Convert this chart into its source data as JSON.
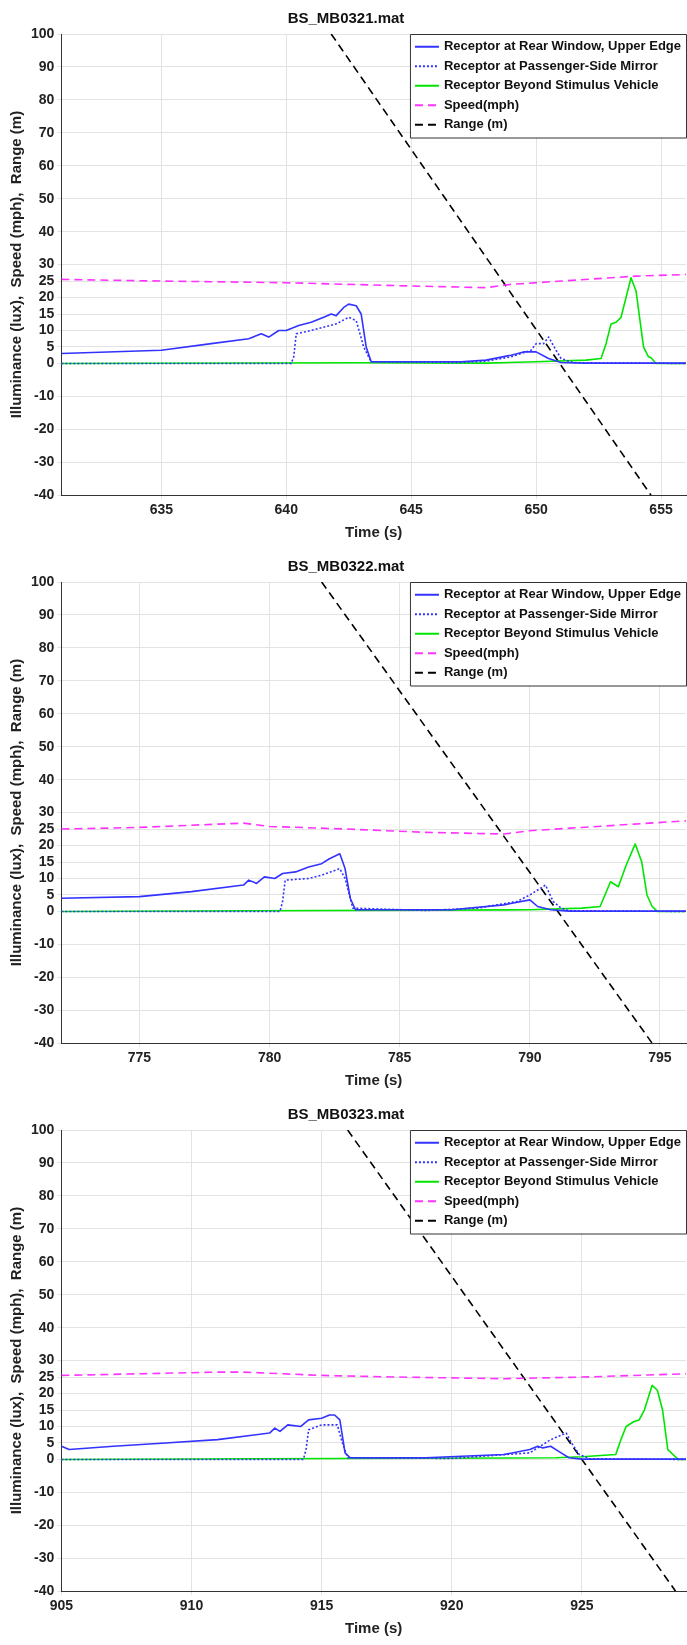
{
  "chart_data": [
    {
      "type": "line",
      "title": "BS_MB0321.mat",
      "xlabel": "Time (s)",
      "ylabel": "Illuminance (lux),  Speed (mph),  Range (m)",
      "xlim": [
        631,
        656
      ],
      "xticks": [
        635,
        640,
        645,
        650,
        655
      ],
      "ylim": [
        -40,
        100
      ],
      "yticks": [
        -40,
        -30,
        -20,
        -10,
        0,
        5,
        10,
        15,
        20,
        25,
        30,
        40,
        50,
        60,
        70,
        80,
        90,
        100
      ],
      "grid": true,
      "legend": "top right",
      "marker": "none",
      "series": [
        {
          "name": "Receptor at Rear Window, Upper Edge",
          "color": "#3333ff",
          "line_style": "solid",
          "x": [
            631,
            635,
            637,
            638.5,
            639,
            639.3,
            639.7,
            640,
            640.5,
            641,
            641.5,
            641.8,
            642,
            642.3,
            642.5,
            642.8,
            643,
            643.2,
            643.4,
            645,
            647,
            648,
            649,
            649.5,
            650,
            650.5,
            651,
            652,
            656
          ],
          "values": [
            3,
            4,
            6,
            7.5,
            9,
            8,
            10,
            10,
            11.5,
            12.5,
            14,
            15,
            14.5,
            17,
            18,
            17.5,
            15,
            5,
            0.5,
            0.5,
            0.5,
            1,
            2.5,
            3.5,
            3.5,
            1.5,
            0.3,
            0.1,
            0.1
          ]
        },
        {
          "name": "Receptor at Passenger-Side Mirror",
          "color": "#3333ff",
          "line_style": "dotted",
          "x": [
            631,
            640.2,
            640.3,
            640.4,
            641,
            642,
            642.5,
            642.8,
            643.1,
            643.4,
            647,
            648,
            649,
            649.8,
            650,
            650.3,
            650.5,
            650.8,
            651,
            651.5,
            656
          ],
          "values": [
            0,
            0,
            2,
            9,
            10,
            12,
            14,
            13,
            5,
            0.5,
            0.3,
            0.7,
            2,
            4,
            6,
            6,
            8,
            4,
            1.5,
            0.2,
            0
          ]
        },
        {
          "name": "Receptor Beyond Stimulus Vehicle",
          "color": "#00e600",
          "line_style": "solid",
          "x": [
            631,
            643,
            648,
            650,
            652,
            652.6,
            652.8,
            653,
            653.2,
            653.4,
            653.6,
            653.8,
            654,
            654.3,
            654.5,
            654.6,
            654.8,
            656
          ],
          "values": [
            0,
            0.2,
            0.1,
            0.5,
            1,
            1.5,
            6,
            12,
            12.5,
            14,
            20,
            26,
            22,
            5,
            2,
            1.7,
            0,
            0
          ]
        },
        {
          "name": "Speed(mph)",
          "color": "#ff33ff",
          "line_style": "dashed",
          "x": [
            631,
            635,
            640,
            645,
            648,
            649,
            651,
            653,
            654,
            656
          ],
          "values": [
            25.5,
            25,
            24.5,
            23.5,
            23,
            24,
            25,
            26,
            26.5,
            27
          ]
        },
        {
          "name": "Range (m)",
          "color": "#000000",
          "line_style": "dashed",
          "x": [
            641.8,
            654.6
          ],
          "values": [
            100,
            -40
          ]
        }
      ]
    },
    {
      "type": "line",
      "title": "BS_MB0322.mat",
      "xlabel": "Time (s)",
      "ylabel": "Illuminance (lux),  Speed (mph),  Range (m)",
      "xlim": [
        772,
        796
      ],
      "xticks": [
        775,
        780,
        785,
        790,
        795
      ],
      "ylim": [
        -40,
        100
      ],
      "yticks": [
        -40,
        -30,
        -20,
        -10,
        0,
        5,
        10,
        15,
        20,
        25,
        30,
        40,
        50,
        60,
        70,
        80,
        90,
        100
      ],
      "grid": true,
      "legend": "top right",
      "marker": "none",
      "series": [
        {
          "name": "Receptor at Rear Window, Upper Edge",
          "color": "#3333ff",
          "line_style": "solid",
          "x": [
            772,
            775,
            777,
            779,
            779.2,
            779.5,
            779.8,
            780.2,
            780.5,
            781,
            781.5,
            782,
            782.3,
            782.7,
            782.9,
            783.1,
            783.3,
            787,
            789,
            790,
            790.3,
            790.8,
            791.5,
            796
          ],
          "values": [
            4,
            4.5,
            6,
            8,
            9.5,
            8.5,
            10.5,
            10,
            11.5,
            12,
            13.5,
            14.5,
            16,
            17.5,
            13,
            4,
            0.5,
            0.5,
            2,
            3.5,
            1.5,
            0.5,
            0.1,
            0.1
          ]
        },
        {
          "name": "Receptor at Passenger-Side Mirror",
          "color": "#3333ff",
          "line_style": "dotted",
          "x": [
            772,
            780.4,
            780.5,
            780.6,
            781.5,
            782,
            782.7,
            782.9,
            783.2,
            786,
            788,
            789.5,
            790,
            790.6,
            790.9,
            791.2,
            791.5,
            796
          ],
          "values": [
            0,
            0,
            3,
            9.5,
            10,
            11,
            13,
            10,
            1,
            0.3,
            1,
            3,
            5,
            8,
            3,
            1,
            0.2,
            0
          ]
        },
        {
          "name": "Receptor Beyond Stimulus Vehicle",
          "color": "#00e600",
          "line_style": "solid",
          "x": [
            772,
            790,
            792,
            792.7,
            793.1,
            793.4,
            793.7,
            794.05,
            794.3,
            794.5,
            794.7,
            794.9,
            796
          ],
          "values": [
            0,
            0.5,
            1,
            1.5,
            9,
            7.5,
            14,
            20.5,
            15,
            5,
            1.5,
            0,
            0
          ]
        },
        {
          "name": "Speed(mph)",
          "color": "#ff33ff",
          "line_style": "dashed",
          "x": [
            772,
            775,
            778,
            779,
            780,
            783,
            786,
            789,
            790,
            792,
            794,
            796
          ],
          "values": [
            25,
            25.5,
            26.5,
            26.8,
            25.8,
            25,
            24,
            23.5,
            24.5,
            25.5,
            26.5,
            27.5
          ]
        },
        {
          "name": "Range (m)",
          "color": "#000000",
          "line_style": "dashed",
          "x": [
            782,
            794.7
          ],
          "values": [
            100,
            -40
          ]
        }
      ]
    },
    {
      "type": "line",
      "title": "BS_MB0323.mat",
      "xlabel": "Time (s)",
      "ylabel": "Illuminance (lux),  Speed (mph),  Range (m)",
      "xlim": [
        905,
        929
      ],
      "xticks": [
        905,
        910,
        915,
        920,
        925
      ],
      "ylim": [
        -40,
        100
      ],
      "yticks": [
        -40,
        -30,
        -20,
        -10,
        0,
        5,
        10,
        15,
        20,
        25,
        30,
        40,
        50,
        60,
        70,
        80,
        90,
        100
      ],
      "grid": true,
      "legend": "top right",
      "marker": "none",
      "series": [
        {
          "name": "Receptor at Rear Window, Upper Edge",
          "color": "#3333ff",
          "line_style": "solid",
          "x": [
            905,
            905.3,
            907,
            909,
            911,
            913,
            913.2,
            913.4,
            913.7,
            914.2,
            914.5,
            915,
            915.3,
            915.5,
            915.7,
            915.9,
            916.1,
            919,
            922,
            923,
            923.3,
            923.5,
            923.8,
            924.2,
            924.5,
            925,
            929
          ],
          "values": [
            4,
            3,
            4,
            5,
            6,
            8,
            9.5,
            8.5,
            10.5,
            10,
            12,
            12.5,
            13.5,
            13.5,
            12,
            2,
            0.5,
            0.5,
            1.5,
            3,
            4,
            3.5,
            4,
            2,
            0.5,
            0.1,
            0.1
          ]
        },
        {
          "name": "Receptor at Passenger-Side Mirror",
          "color": "#3333ff",
          "line_style": "dotted",
          "x": [
            905,
            914.3,
            914.4,
            914.5,
            915,
            915.6,
            915.8,
            916,
            920,
            923,
            923.8,
            924.4,
            924.6,
            924.9,
            925.3,
            929
          ],
          "values": [
            0,
            0,
            3,
            9,
            10.5,
            10.5,
            5,
            0.5,
            0.3,
            2,
            6,
            8,
            5,
            1.5,
            0.2,
            0
          ]
        },
        {
          "name": "Receptor Beyond Stimulus Vehicle",
          "color": "#00e600",
          "line_style": "solid",
          "x": [
            905,
            924,
            925,
            926.3,
            926.5,
            926.7,
            927,
            927.2,
            927.4,
            927.7,
            927.9,
            928.1,
            928.3,
            928.5,
            928.7,
            929
          ],
          "values": [
            0,
            0.5,
            0.8,
            1.5,
            6,
            10,
            11.5,
            12,
            15,
            22.5,
            21,
            15,
            3,
            1.5,
            0,
            0
          ]
        },
        {
          "name": "Speed(mph)",
          "color": "#ff33ff",
          "line_style": "dashed",
          "x": [
            905,
            908,
            911,
            912,
            915,
            918,
            922,
            925,
            929
          ],
          "values": [
            25.5,
            26,
            26.5,
            26.5,
            25.5,
            25,
            24.5,
            25,
            26
          ]
        },
        {
          "name": "Range (m)",
          "color": "#000000",
          "line_style": "dashed",
          "x": [
            916,
            928.6
          ],
          "values": [
            100,
            -40
          ]
        }
      ]
    }
  ]
}
